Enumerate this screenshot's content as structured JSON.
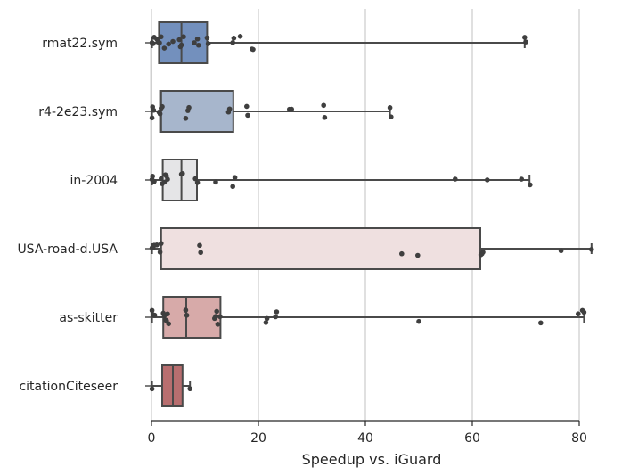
{
  "chart_data": {
    "type": "box",
    "orientation": "horizontal",
    "xlabel": "Speedup vs. iGuard",
    "ylabel": "",
    "xlim": [
      0,
      84
    ],
    "xticks": [
      0,
      20,
      40,
      60,
      80
    ],
    "grid": "vertical",
    "categories": [
      "rmat22.sym",
      "r4-2e23.sym",
      "in-2004",
      "USA-road-d.USA",
      "as-skitter",
      "citationCiteseer"
    ],
    "colors": [
      "#7390bd",
      "#a7b6cc",
      "#e5e5e7",
      "#efe0e0",
      "#d7aaa9",
      "#b86e6f"
    ],
    "series": [
      {
        "name": "rmat22.sym",
        "whisker_low": 0.1,
        "q1": 1.4,
        "median": 5.6,
        "q3": 10.4,
        "whisker_high": 69.8,
        "points": [
          0.1,
          0.3,
          0.5,
          1.0,
          1.2,
          1.5,
          1.8,
          2.4,
          3.2,
          4.0,
          5.2,
          5.4,
          5.6,
          6.0,
          8.0,
          8.6,
          8.8,
          10.4,
          10.6,
          15.2,
          15.4,
          16.6,
          18.8,
          19.0,
          69.8,
          70.0
        ]
      },
      {
        "name": "r4-2e23.sym",
        "whisker_low": 0.1,
        "q1": 1.6,
        "median": 1.8,
        "q3": 15.3,
        "whisker_high": 44.6,
        "points": [
          0.1,
          0.2,
          0.4,
          1.4,
          1.6,
          1.8,
          2.0,
          6.4,
          6.8,
          7.0,
          14.4,
          14.6,
          17.8,
          18.0,
          25.8,
          26.2,
          32.2,
          32.4,
          44.6,
          44.8
        ]
      },
      {
        "name": "in-2004",
        "whisker_low": 0.1,
        "q1": 2.1,
        "median": 5.6,
        "q3": 8.5,
        "whisker_high": 70.7,
        "points": [
          0.1,
          0.2,
          0.5,
          1.8,
          2.0,
          2.4,
          2.6,
          2.8,
          3.0,
          5.6,
          5.8,
          8.2,
          8.6,
          12.0,
          15.2,
          15.6,
          56.8,
          62.8,
          69.2,
          70.8
        ]
      },
      {
        "name": "USA-road-d.USA",
        "whisker_low": 0.1,
        "q1": 1.7,
        "median": 1.8,
        "q3": 61.5,
        "whisker_high": 82.3,
        "points": [
          0.1,
          0.3,
          0.5,
          1.0,
          1.6,
          1.8,
          9.0,
          9.2,
          46.8,
          49.8,
          61.6,
          61.8,
          62.0,
          76.6,
          82.3
        ]
      },
      {
        "name": "as-skitter",
        "whisker_low": 0.1,
        "q1": 2.2,
        "median": 6.5,
        "q3": 12.9,
        "whisker_high": 80.9,
        "points": [
          0.1,
          0.3,
          0.6,
          2.2,
          2.4,
          2.6,
          2.8,
          3.0,
          3.2,
          6.4,
          6.6,
          11.8,
          12.0,
          12.2,
          12.4,
          12.8,
          21.4,
          21.6,
          23.2,
          23.4,
          50.0,
          72.8,
          79.8,
          80.6,
          80.9
        ]
      },
      {
        "name": "citationCiteseer",
        "whisker_low": 0.1,
        "q1": 2.0,
        "median": 4.0,
        "q3": 5.8,
        "whisker_high": 7.2,
        "points": [
          0.1,
          7.2
        ]
      }
    ]
  }
}
